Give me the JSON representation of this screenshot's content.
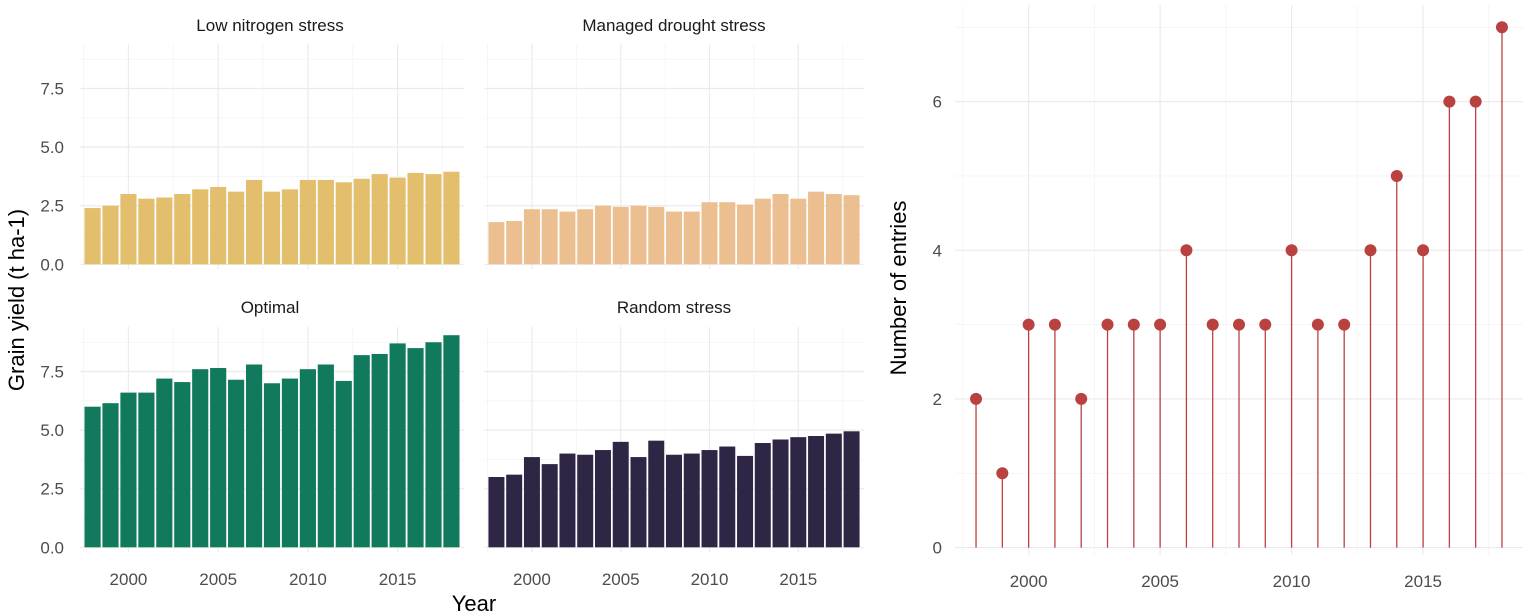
{
  "chart_data": [
    {
      "type": "bar",
      "facet_layout": "2x2",
      "xlabel": "Year",
      "ylabel": "Grain yield (t ha-1)",
      "xlim": [
        1997.3,
        2018.7
      ],
      "ylim": [
        -0.2,
        9.4
      ],
      "x_ticks": [
        2000,
        2005,
        2010,
        2015
      ],
      "x_tick_labels": [
        "2000",
        "2005",
        "2010",
        "2015"
      ],
      "y_ticks": [
        0,
        2.5,
        5,
        7.5
      ],
      "y_tick_labels": [
        "0.0",
        "2.5",
        "5.0",
        "7.5"
      ],
      "years": [
        1998,
        1999,
        2000,
        2001,
        2002,
        2003,
        2004,
        2005,
        2006,
        2007,
        2008,
        2009,
        2010,
        2011,
        2012,
        2013,
        2014,
        2015,
        2016,
        2017,
        2018
      ],
      "series": [
        {
          "name": "Low nitrogen stress",
          "color": "#e3be6c",
          "values": [
            2.4,
            2.5,
            3.0,
            2.8,
            2.85,
            3.0,
            3.2,
            3.3,
            3.1,
            3.6,
            3.1,
            3.2,
            3.6,
            3.6,
            3.5,
            3.65,
            3.85,
            3.7,
            3.9,
            3.85,
            3.95
          ]
        },
        {
          "name": "Managed drought stress",
          "color": "#ebbf90",
          "values": [
            1.8,
            1.85,
            2.35,
            2.35,
            2.25,
            2.35,
            2.5,
            2.45,
            2.5,
            2.45,
            2.25,
            2.25,
            2.65,
            2.65,
            2.55,
            2.8,
            3.0,
            2.8,
            3.1,
            3.0,
            2.95
          ]
        },
        {
          "name": "Optimal",
          "color": "#127a5c",
          "values": [
            6.0,
            6.15,
            6.6,
            6.6,
            7.2,
            7.05,
            7.6,
            7.65,
            7.15,
            7.8,
            7.0,
            7.2,
            7.6,
            7.8,
            7.1,
            8.2,
            8.25,
            8.7,
            8.5,
            8.75,
            9.05
          ]
        },
        {
          "name": "Random stress",
          "color": "#2f2646",
          "values": [
            3.0,
            3.1,
            3.85,
            3.55,
            4.0,
            3.95,
            4.15,
            4.5,
            3.85,
            4.55,
            3.95,
            4.0,
            4.15,
            4.3,
            3.9,
            4.45,
            4.6,
            4.7,
            4.75,
            4.85,
            4.95
          ]
        }
      ]
    },
    {
      "type": "lollipop",
      "xlabel": "",
      "ylabel": "Number of entries",
      "xlim": [
        1997.2,
        2018.8
      ],
      "ylim": [
        -0.1,
        7.3
      ],
      "x_ticks": [
        2000,
        2005,
        2010,
        2015
      ],
      "x_tick_labels": [
        "2000",
        "2005",
        "2010",
        "2015"
      ],
      "y_ticks": [
        0,
        2,
        4,
        6
      ],
      "y_tick_labels": [
        "0",
        "2",
        "4",
        "6"
      ],
      "color": "#b94140",
      "x": [
        1998,
        1999,
        2000,
        2001,
        2002,
        2003,
        2004,
        2005,
        2006,
        2007,
        2008,
        2009,
        2010,
        2011,
        2012,
        2013,
        2014,
        2015,
        2016,
        2017,
        2018
      ],
      "values": [
        2,
        1,
        3,
        3,
        2,
        3,
        3,
        3,
        4,
        3,
        3,
        3,
        4,
        3,
        3,
        4,
        5,
        4,
        6,
        6,
        7
      ]
    }
  ]
}
